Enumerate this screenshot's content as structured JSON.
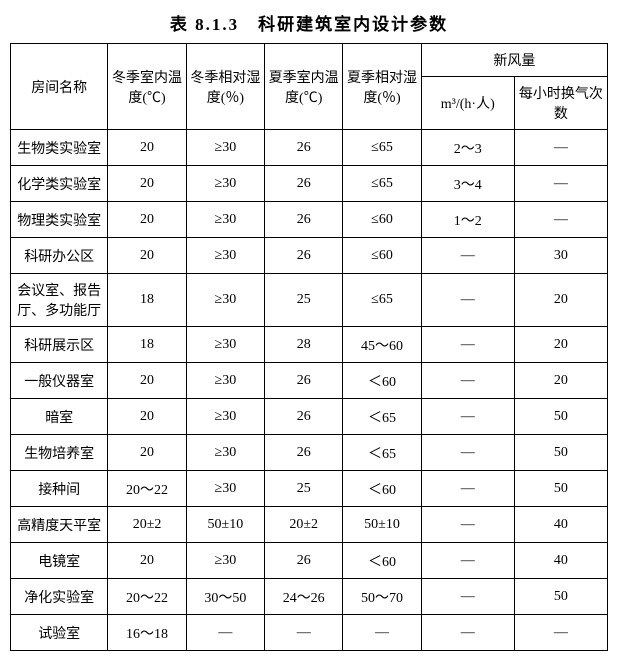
{
  "title": "表 8.1.3　科研建筑室内设计参数",
  "headers": {
    "room_name": "房间名称",
    "winter_temp": "冬季室内温度(℃)",
    "winter_humid": "冬季相对湿度(％)",
    "summer_temp": "夏季室内温度(℃)",
    "summer_humid": "夏季相对湿度(％)",
    "fresh_air": "新风量",
    "fresh_air_m3": "m³/(h·人)",
    "fresh_air_ach": "每小时换气次数"
  },
  "rows": [
    {
      "name": "生物类实验室",
      "wt": "20",
      "wh": "≥30",
      "st": "26",
      "sh": "≤65",
      "m3": "2～3",
      "ach": "—"
    },
    {
      "name": "化学类实验室",
      "wt": "20",
      "wh": "≥30",
      "st": "26",
      "sh": "≤65",
      "m3": "3～4",
      "ach": "—"
    },
    {
      "name": "物理类实验室",
      "wt": "20",
      "wh": "≥30",
      "st": "26",
      "sh": "≤60",
      "m3": "1～2",
      "ach": "—"
    },
    {
      "name": "科研办公区",
      "wt": "20",
      "wh": "≥30",
      "st": "26",
      "sh": "≤60",
      "m3": "—",
      "ach": "30"
    },
    {
      "name": "会议室、报告厅、多功能厅",
      "wt": "18",
      "wh": "≥30",
      "st": "25",
      "sh": "≤65",
      "m3": "—",
      "ach": "20",
      "tall": true
    },
    {
      "name": "科研展示区",
      "wt": "18",
      "wh": "≥30",
      "st": "28",
      "sh": "45～60",
      "m3": "—",
      "ach": "20"
    },
    {
      "name": "一般仪器室",
      "wt": "20",
      "wh": "≥30",
      "st": "26",
      "sh": "＜60",
      "m3": "—",
      "ach": "20"
    },
    {
      "name": "暗室",
      "wt": "20",
      "wh": "≥30",
      "st": "26",
      "sh": "＜65",
      "m3": "—",
      "ach": "50"
    },
    {
      "name": "生物培养室",
      "wt": "20",
      "wh": "≥30",
      "st": "26",
      "sh": "＜65",
      "m3": "—",
      "ach": "50"
    },
    {
      "name": "接种间",
      "wt": "20～22",
      "wh": "≥30",
      "st": "25",
      "sh": "＜60",
      "m3": "—",
      "ach": "50"
    },
    {
      "name": "高精度天平室",
      "wt": "20±2",
      "wh": "50±10",
      "st": "20±2",
      "sh": "50±10",
      "m3": "—",
      "ach": "40"
    },
    {
      "name": "电镜室",
      "wt": "20",
      "wh": "≥30",
      "st": "26",
      "sh": "＜60",
      "m3": "—",
      "ach": "40"
    },
    {
      "name": "净化实验室",
      "wt": "20～22",
      "wh": "30～50",
      "st": "24～26",
      "sh": "50～70",
      "m3": "—",
      "ach": "50"
    },
    {
      "name": "试验室",
      "wt": "16～18",
      "wh": "—",
      "st": "—",
      "sh": "—",
      "m3": "—",
      "ach": "—"
    }
  ],
  "style": {
    "border_color": "#000000",
    "background": "#ffffff",
    "font_family": "SimSun",
    "title_fontsize": 17,
    "cell_fontsize": 14
  }
}
